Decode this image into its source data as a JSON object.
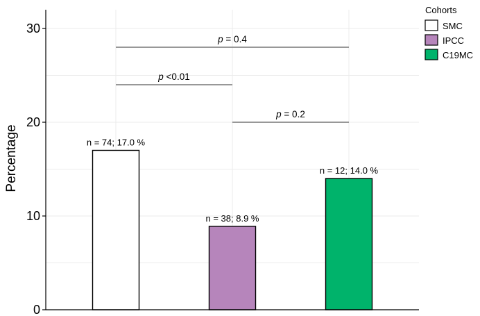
{
  "chart_data": {
    "type": "bar",
    "ylabel": "Percentage",
    "ylim": [
      0,
      32
    ],
    "yticks": [
      0,
      10,
      20,
      30
    ],
    "grid": true,
    "legend": {
      "title": "Cohorts",
      "placement": "top-right",
      "entries": [
        {
          "label": "SMC",
          "color": "#ffffff"
        },
        {
          "label": "IPCC",
          "color": "#b685bb"
        },
        {
          "label": "C19MC",
          "color": "#00b36b"
        }
      ]
    },
    "categories": [
      "SMC",
      "IPCC",
      "C19MC"
    ],
    "values": [
      17.0,
      8.9,
      14.0
    ],
    "colors": [
      "#ffffff",
      "#b685bb",
      "#00b36b"
    ],
    "bar_labels": [
      "n = 74; 17.0 %",
      "n = 38; 8.9 %",
      "n = 12; 14.0 %"
    ],
    "comparisons": [
      {
        "from": 0,
        "to": 2,
        "y": 28,
        "p_symbol": "p",
        "p_text": " = 0.4"
      },
      {
        "from": 0,
        "to": 1,
        "y": 24,
        "p_symbol": "p",
        "p_text": " <0.01"
      },
      {
        "from": 1,
        "to": 2,
        "y": 20,
        "p_symbol": "p",
        "p_text": " = 0.2"
      }
    ]
  }
}
